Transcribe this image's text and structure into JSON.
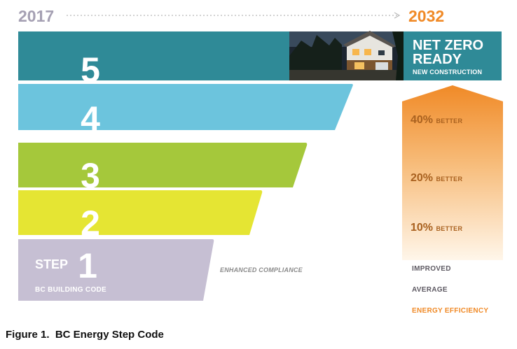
{
  "header": {
    "start_year": "2017",
    "end_year": "2032"
  },
  "steps": [
    {
      "number": "5",
      "color": "#2f8a97"
    },
    {
      "number": "4",
      "color": "#6cc4dd"
    },
    {
      "number": "3",
      "color": "#a5c83b"
    },
    {
      "number": "2",
      "color": "#e5e533"
    },
    {
      "number": "1",
      "color": "#c6bfd3"
    }
  ],
  "top_panel": {
    "line1": "NET ZERO",
    "line2": "READY",
    "sub": "NEW CONSTRUCTION",
    "color": "#2f8a97"
  },
  "step1": {
    "step_label": "STEP",
    "base_label": "BC BUILDING CODE",
    "compliance_label": "ENHANCED COMPLIANCE"
  },
  "arrow": {
    "levels": [
      {
        "pct": "40%",
        "word": "BETTER"
      },
      {
        "pct": "20%",
        "word": "BETTER"
      },
      {
        "pct": "10%",
        "word": "BETTER"
      }
    ],
    "top_color": "#f08a27"
  },
  "legend": {
    "improved": "IMPROVED",
    "average": "AVERAGE",
    "energy": "ENERGY EFFICIENCY",
    "energy_color": "#f08a27"
  },
  "caption": "Figure 1.  BC Energy Step Code"
}
